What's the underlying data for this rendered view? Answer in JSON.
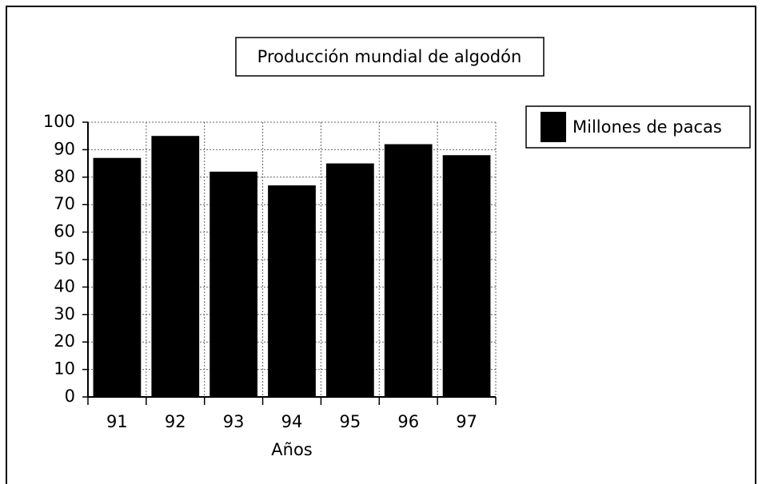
{
  "chart_data": {
    "type": "bar",
    "title": "Producción mundial de algodón",
    "x_label": "Años",
    "categories": [
      "91",
      "92",
      "93",
      "94",
      "95",
      "96",
      "97"
    ],
    "series": [
      {
        "name": "Millones de pacas",
        "color": "#000000",
        "values": [
          87,
          95,
          82,
          77,
          85,
          92,
          88
        ]
      }
    ],
    "ylim": [
      0,
      100
    ],
    "yticks": [
      0,
      10,
      20,
      30,
      40,
      50,
      60,
      70,
      80,
      90,
      100
    ],
    "grid": true,
    "legend": "top-right"
  }
}
